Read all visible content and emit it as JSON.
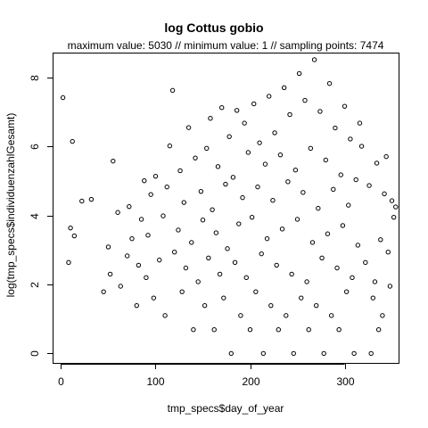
{
  "chart_data": {
    "type": "scatter",
    "title": "log Cottus gobio",
    "subtitle": "maximum value: 5030  //  minimum value: 1  // sampling points: 7474",
    "xlabel": "tmp_specs$day_of_year",
    "ylabel": "log(tmp_specs$individuenzahlGesamt)",
    "xlim": [
      -8,
      358
    ],
    "ylim": [
      -0.3,
      8.7
    ],
    "xticks": [
      0,
      100,
      200,
      300
    ],
    "yticks": [
      0,
      2,
      4,
      6,
      8
    ],
    "marker": "open-circle",
    "grid": false,
    "points": [
      [
        2,
        7.42
      ],
      [
        12,
        6.15
      ],
      [
        10,
        3.64
      ],
      [
        14,
        3.41
      ],
      [
        8,
        2.64
      ],
      [
        22,
        4.42
      ],
      [
        32,
        4.47
      ],
      [
        45,
        1.79
      ],
      [
        50,
        3.09
      ],
      [
        52,
        2.3
      ],
      [
        55,
        5.58
      ],
      [
        60,
        4.09
      ],
      [
        63,
        1.95
      ],
      [
        70,
        2.83
      ],
      [
        72,
        4.26
      ],
      [
        75,
        3.33
      ],
      [
        80,
        1.39
      ],
      [
        82,
        2.56
      ],
      [
        85,
        3.89
      ],
      [
        88,
        5.01
      ],
      [
        90,
        2.2
      ],
      [
        92,
        3.43
      ],
      [
        95,
        4.61
      ],
      [
        98,
        1.61
      ],
      [
        100,
        5.14
      ],
      [
        104,
        2.71
      ],
      [
        108,
        3.99
      ],
      [
        110,
        1.1
      ],
      [
        112,
        4.83
      ],
      [
        115,
        6.02
      ],
      [
        118,
        7.63
      ],
      [
        120,
        2.94
      ],
      [
        124,
        3.58
      ],
      [
        126,
        5.3
      ],
      [
        128,
        1.79
      ],
      [
        130,
        4.38
      ],
      [
        132,
        2.48
      ],
      [
        135,
        6.55
      ],
      [
        138,
        3.22
      ],
      [
        140,
        0.69
      ],
      [
        142,
        5.67
      ],
      [
        145,
        2.08
      ],
      [
        148,
        4.7
      ],
      [
        150,
        3.87
      ],
      [
        152,
        1.39
      ],
      [
        154,
        5.95
      ],
      [
        156,
        2.77
      ],
      [
        158,
        6.82
      ],
      [
        160,
        4.17
      ],
      [
        162,
        0.69
      ],
      [
        164,
        3.5
      ],
      [
        166,
        5.42
      ],
      [
        168,
        2.3
      ],
      [
        170,
        7.13
      ],
      [
        172,
        1.61
      ],
      [
        174,
        4.91
      ],
      [
        176,
        3.04
      ],
      [
        178,
        6.29
      ],
      [
        180,
        0.0
      ],
      [
        182,
        5.11
      ],
      [
        184,
        2.64
      ],
      [
        186,
        7.05
      ],
      [
        188,
        3.76
      ],
      [
        190,
        1.1
      ],
      [
        192,
        4.52
      ],
      [
        194,
        6.68
      ],
      [
        196,
        2.2
      ],
      [
        198,
        5.83
      ],
      [
        200,
        0.69
      ],
      [
        202,
        3.95
      ],
      [
        204,
        7.24
      ],
      [
        206,
        1.79
      ],
      [
        208,
        4.83
      ],
      [
        210,
        6.11
      ],
      [
        212,
        2.89
      ],
      [
        214,
        0.0
      ],
      [
        216,
        5.49
      ],
      [
        218,
        3.33
      ],
      [
        220,
        7.46
      ],
      [
        222,
        1.39
      ],
      [
        224,
        4.44
      ],
      [
        226,
        6.4
      ],
      [
        228,
        2.56
      ],
      [
        230,
        0.69
      ],
      [
        232,
        5.76
      ],
      [
        234,
        3.61
      ],
      [
        236,
        7.71
      ],
      [
        238,
        1.1
      ],
      [
        240,
        4.98
      ],
      [
        242,
        6.93
      ],
      [
        244,
        2.3
      ],
      [
        246,
        0.0
      ],
      [
        248,
        5.32
      ],
      [
        250,
        3.89
      ],
      [
        252,
        8.12
      ],
      [
        254,
        1.61
      ],
      [
        256,
        4.67
      ],
      [
        258,
        7.34
      ],
      [
        260,
        2.08
      ],
      [
        262,
        0.69
      ],
      [
        264,
        5.95
      ],
      [
        266,
        3.22
      ],
      [
        268,
        8.52
      ],
      [
        270,
        1.39
      ],
      [
        272,
        4.21
      ],
      [
        274,
        7.02
      ],
      [
        276,
        2.77
      ],
      [
        278,
        0.0
      ],
      [
        280,
        5.61
      ],
      [
        282,
        3.47
      ],
      [
        284,
        7.83
      ],
      [
        286,
        1.1
      ],
      [
        288,
        4.76
      ],
      [
        290,
        6.54
      ],
      [
        292,
        2.48
      ],
      [
        294,
        0.69
      ],
      [
        296,
        5.18
      ],
      [
        298,
        3.71
      ],
      [
        300,
        7.17
      ],
      [
        302,
        1.79
      ],
      [
        304,
        4.3
      ],
      [
        306,
        6.22
      ],
      [
        308,
        2.2
      ],
      [
        310,
        0.0
      ],
      [
        312,
        5.04
      ],
      [
        314,
        3.14
      ],
      [
        318,
        6.01
      ],
      [
        322,
        2.64
      ],
      [
        326,
        4.87
      ],
      [
        330,
        1.61
      ],
      [
        334,
        5.52
      ],
      [
        338,
        3.3
      ],
      [
        342,
        4.63
      ],
      [
        346,
        2.94
      ],
      [
        350,
        4.43
      ],
      [
        352,
        3.95
      ],
      [
        354,
        4.25
      ],
      [
        348,
        1.95
      ],
      [
        344,
        5.71
      ],
      [
        336,
        0.69
      ],
      [
        340,
        1.1
      ],
      [
        328,
        0.0
      ],
      [
        332,
        2.08
      ],
      [
        316,
        6.68
      ]
    ]
  }
}
